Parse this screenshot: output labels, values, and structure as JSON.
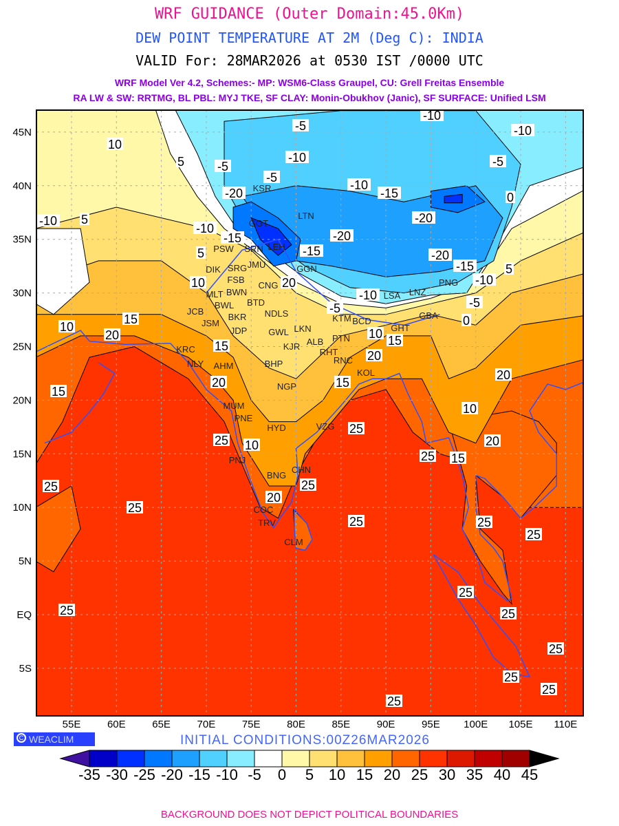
{
  "header": {
    "title": "WRF GUIDANCE (Outer Domain:45.0Km)",
    "subtitle": "DEW POINT TEMPERATURE AT 2M (Deg C): INDIA",
    "valid": "VALID For: 28MAR2026 at 0530 IST /0000 UTC",
    "schemes_line1": "WRF Model Ver 4.2, Schemes:- MP: WSM6-Class Graupel, CU: Grell Freitas Ensemble",
    "schemes_line2": "RA LW & SW: RRTMG, BL PBL: MYJ TKE, SF CLAY: Monin-Obukhov (Janic), SF SURFACE: Unified LSM"
  },
  "axes": {
    "lon_labels": [
      "55E",
      "60E",
      "65E",
      "70E",
      "75E",
      "80E",
      "85E",
      "90E",
      "95E",
      "100E",
      "105E",
      "110E"
    ],
    "lat_labels": [
      "45N",
      "40N",
      "35N",
      "30N",
      "25N",
      "20N",
      "15N",
      "10N",
      "5N",
      "EQ",
      "5S"
    ]
  },
  "cities": [
    "KSR",
    "LTN",
    "GGT",
    "PSW",
    "SRN",
    "LEH",
    "JMU",
    "GGN",
    "DIK",
    "SRG",
    "FSB",
    "MLT",
    "BWN",
    "BTD",
    "BWL",
    "CNG",
    "BKR",
    "NDLS",
    "JCB",
    "JSM",
    "JDP",
    "GWL",
    "LKN",
    "ALB",
    "KJR",
    "PTN",
    "RHT",
    "BCD",
    "KTM",
    "GHT",
    "GBA",
    "LNZ",
    "LSA",
    "PNG",
    "KRC",
    "NLY",
    "AHM",
    "BHP",
    "RNC",
    "KOL",
    "NGP",
    "MUM",
    "PNE",
    "HYD",
    "VZG",
    "PNJ",
    "BNG",
    "CHN",
    "COC",
    "TRV",
    "CLM"
  ],
  "contour_labels": [
    "-10",
    "-5",
    "-10",
    "10",
    "5",
    "-10",
    "-5",
    "-5",
    "-10",
    "-15",
    "-5",
    "-20",
    "0",
    "-10",
    "5",
    "-10",
    "-15",
    "-20",
    "-20",
    "5",
    "-15",
    "-20",
    "5",
    "-15",
    "-10",
    "10",
    "20",
    "-10",
    "-5",
    "-5",
    "0",
    "10",
    "15",
    "20",
    "15",
    "10",
    "15",
    "20",
    "20",
    "15",
    "20",
    "15",
    "10",
    "25",
    "25",
    "10",
    "20",
    "25",
    "15",
    "25",
    "25",
    "20",
    "25",
    "25",
    "25",
    "25",
    "25",
    "25",
    "25",
    "25",
    "25",
    "25",
    "25"
  ],
  "colorbar": {
    "labels": [
      "-35",
      "-30",
      "-25",
      "-20",
      "-15",
      "-10",
      "-5",
      "0",
      "5",
      "10",
      "15",
      "20",
      "25",
      "30",
      "35",
      "40",
      "45"
    ],
    "colors": [
      "#0000c8",
      "#0030ff",
      "#0078ff",
      "#1ea0ff",
      "#50d0ff",
      "#88eeff",
      "#ffffff",
      "#fff8a8",
      "#ffe070",
      "#ffc03c",
      "#ffa000",
      "#ff6600",
      "#ff3300",
      "#dd1a00",
      "#c00000",
      "#a00000"
    ],
    "under_color": "#4010a0",
    "over_color": "#000000"
  },
  "watermark": {
    "icon": "copyright-icon",
    "label": "WEACLIM"
  },
  "initial_conditions": "INITIAL CONDITIONS:00Z26MAR2026",
  "footer": "BACKGROUND DOES NOT DEPICT POLITICAL BOUNDARIES"
}
